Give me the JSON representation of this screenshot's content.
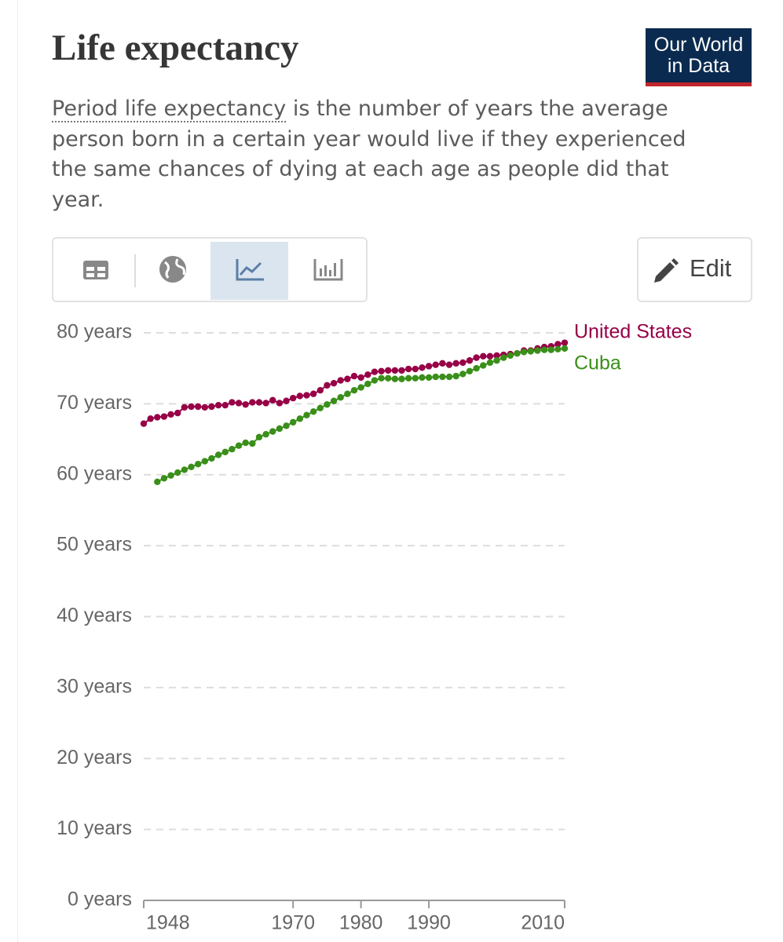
{
  "header": {
    "title": "Life expectancy",
    "logo": [
      "Our World",
      "in Data"
    ],
    "subtitle_link": "Period life expectancy",
    "subtitle": "is the number of years the average person born in a certain year would live if they experienced the same chances of dying at each age as people did that year."
  },
  "toolbar": {
    "edit": "Edit"
  },
  "chart_data": {
    "type": "line",
    "x": [
      1948,
      1949,
      1950,
      1951,
      1952,
      1953,
      1954,
      1955,
      1956,
      1957,
      1958,
      1959,
      1960,
      1961,
      1962,
      1963,
      1964,
      1965,
      1966,
      1967,
      1968,
      1969,
      1970,
      1971,
      1972,
      1973,
      1974,
      1975,
      1976,
      1977,
      1978,
      1979,
      1980,
      1981,
      1982,
      1983,
      1984,
      1985,
      1986,
      1987,
      1988,
      1989,
      1990,
      1991,
      1992,
      1993,
      1994,
      1995,
      1996,
      1997,
      1998,
      1999,
      2000,
      2001,
      2002,
      2003,
      2004,
      2005,
      2006,
      2007,
      2008,
      2009,
      2010
    ],
    "series": [
      {
        "name": "United States",
        "color": "#970046",
        "values": [
          67.2,
          67.9,
          68.1,
          68.2,
          68.5,
          68.7,
          69.5,
          69.6,
          69.6,
          69.5,
          69.6,
          69.8,
          69.8,
          70.2,
          70.1,
          69.9,
          70.2,
          70.2,
          70.1,
          70.5,
          70.1,
          70.4,
          70.8,
          71.1,
          71.2,
          71.4,
          71.9,
          72.6,
          72.9,
          73.3,
          73.5,
          73.9,
          73.7,
          74.1,
          74.5,
          74.6,
          74.7,
          74.7,
          74.7,
          74.9,
          74.9,
          75.1,
          75.3,
          75.5,
          75.7,
          75.5,
          75.7,
          75.8,
          76.1,
          76.5,
          76.7,
          76.7,
          76.8,
          76.9,
          77.0,
          77.1,
          77.5,
          77.5,
          77.8,
          78.0,
          78.1,
          78.4,
          78.6
        ]
      },
      {
        "name": "Cuba",
        "color": "#3a8f1a",
        "values": [
          null,
          null,
          59.0,
          59.5,
          59.9,
          60.3,
          60.7,
          61.1,
          61.5,
          61.9,
          62.3,
          62.8,
          63.2,
          63.6,
          64.1,
          64.5,
          64.4,
          65.3,
          65.7,
          66.1,
          66.5,
          66.9,
          67.4,
          67.9,
          68.4,
          68.9,
          69.4,
          69.9,
          70.4,
          70.9,
          71.4,
          71.9,
          72.3,
          72.8,
          73.3,
          73.6,
          73.6,
          73.5,
          73.5,
          73.6,
          73.6,
          73.7,
          73.7,
          73.8,
          73.8,
          73.8,
          73.9,
          74.2,
          74.6,
          75.0,
          75.4,
          75.8,
          76.1,
          76.5,
          76.8,
          77.1,
          77.3,
          77.4,
          77.5,
          77.6,
          77.6,
          77.7,
          77.8
        ]
      }
    ],
    "xlim": [
      1948,
      2010
    ],
    "xticks": [
      1948,
      1970,
      1980,
      1990,
      2010
    ],
    "ylim": [
      0,
      80
    ],
    "yticks": [
      {
        "value": 0,
        "label": "0 years"
      },
      {
        "value": 10,
        "label": "10 years"
      },
      {
        "value": 20,
        "label": "20 years"
      },
      {
        "value": 30,
        "label": "30 years"
      },
      {
        "value": 40,
        "label": "40 years"
      },
      {
        "value": 50,
        "label": "50 years"
      },
      {
        "value": 60,
        "label": "60 years"
      },
      {
        "value": 70,
        "label": "70 years"
      },
      {
        "value": 80,
        "label": "80 years"
      }
    ],
    "grid": true
  }
}
